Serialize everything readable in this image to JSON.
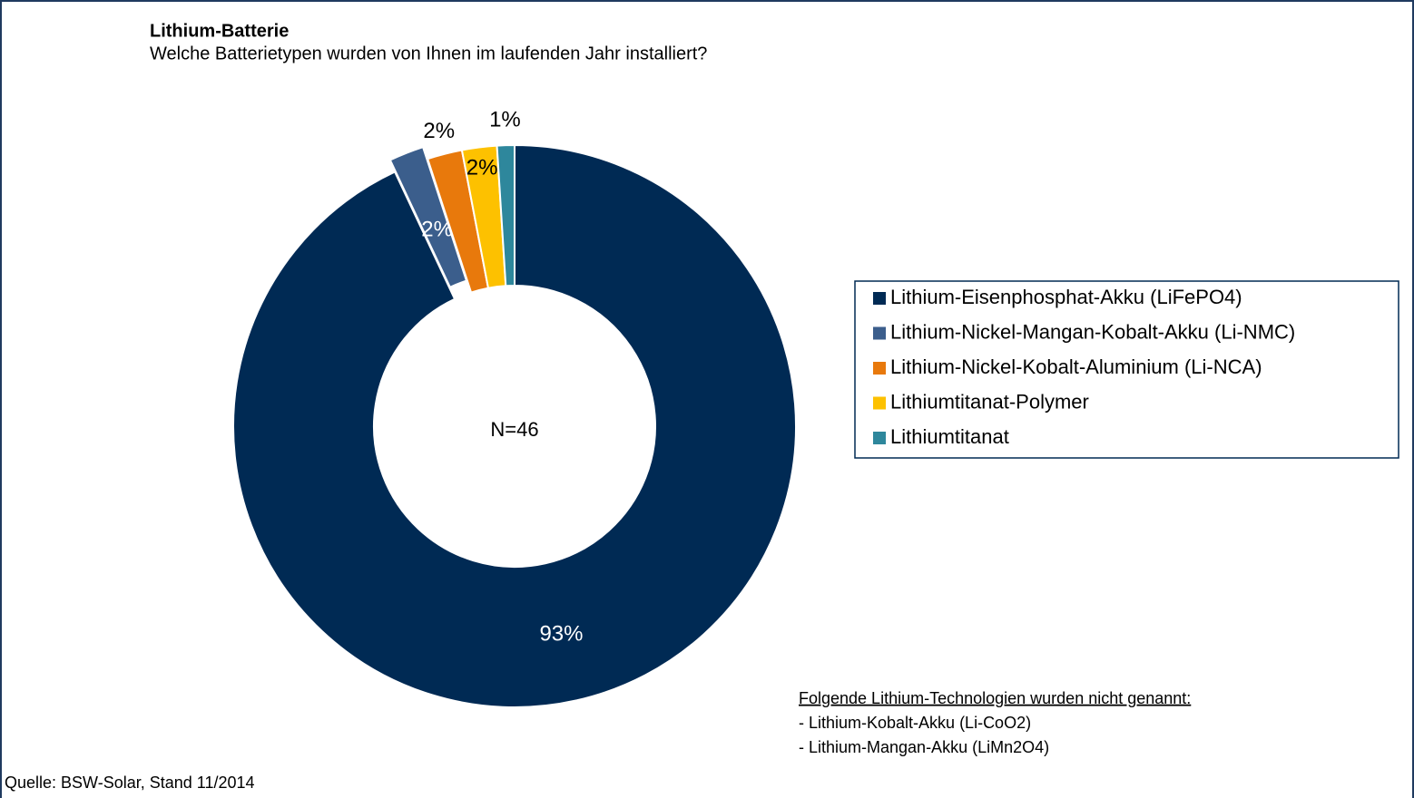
{
  "chart_data": {
    "type": "pie",
    "title": "Lithium-Batterie",
    "subtitle": "Welche Batterietypen wurden von Ihnen im laufenden Jahr installiert?",
    "center_label": "N=46",
    "categories": [
      "Lithium-Eisenphosphat-Akku (LiFePO4)",
      "Lithium-Nickel-Mangan-Kobalt-Akku (Li-NMC)",
      "Lithium-Nickel-Kobalt-Aluminium (Li-NCA)",
      "Lithiumtitanat-Polymer",
      "Lithiumtitanat"
    ],
    "values": [
      93,
      2,
      2,
      2,
      1
    ],
    "value_labels": [
      "93%",
      "2%",
      "2%",
      "2%",
      "1%"
    ],
    "colors": [
      "#002a54",
      "#3b5e8c",
      "#e8790c",
      "#fdc100",
      "#2e879c"
    ],
    "note": {
      "heading": "Folgende  Lithium-Technologien wurden nicht genannt:",
      "lines": [
        "- Lithium-Kobalt-Akku (Li-CoO2)",
        "- Lithium-Mangan-Akku (LiMn2O4)"
      ]
    },
    "source": "Quelle: BSW-Solar, Stand 11/2014"
  }
}
